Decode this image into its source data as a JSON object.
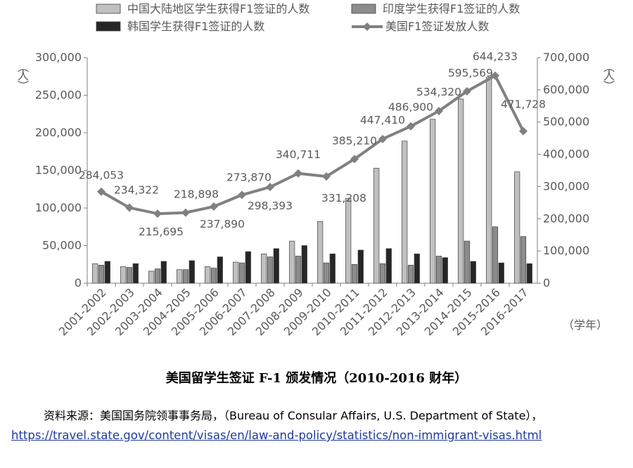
{
  "chart_data": {
    "type": "bar+line",
    "categories": [
      "2001-2002",
      "2002-2003",
      "2003-2004",
      "2004-2005",
      "2005-2006",
      "2006-2007",
      "2007-2008",
      "2008-2009",
      "2009-2010",
      "2010-2011",
      "2011-2012",
      "2012-2013",
      "2013-2014",
      "2014-2015",
      "2015-2016",
      "2016-2017"
    ],
    "series": [
      {
        "name": "中国大陆地区学生获得F1签证的人数",
        "kind": "bar",
        "axis": "left",
        "color": "#c0c0c0",
        "values": [
          26000,
          22000,
          16000,
          18000,
          22000,
          28000,
          39000,
          56000,
          82000,
          113000,
          153000,
          189000,
          218000,
          245000,
          274000,
          148000
        ]
      },
      {
        "name": "印度学生获得F1签证的人数",
        "kind": "bar",
        "axis": "left",
        "color": "#8c8c8c",
        "values": [
          24000,
          21000,
          19000,
          18000,
          20000,
          27000,
          35000,
          36000,
          27000,
          25000,
          26000,
          24000,
          36000,
          56000,
          75000,
          62000
        ]
      },
      {
        "name": "韩国学生获得F1签证的人数",
        "kind": "bar",
        "axis": "left",
        "color": "#262626",
        "values": [
          29000,
          26000,
          29000,
          30000,
          35000,
          42000,
          46000,
          50000,
          39000,
          44000,
          46000,
          39000,
          34000,
          29000,
          27000,
          26000
        ]
      },
      {
        "name": "美国F1签证发放人数",
        "kind": "line",
        "axis": "right",
        "color": "#808080",
        "values": [
          284053,
          234322,
          215695,
          218898,
          237890,
          273870,
          298393,
          340711,
          331208,
          385210,
          447410,
          486900,
          534320,
          595569,
          644233,
          471728
        ],
        "labels": [
          "284,053",
          "234,322",
          "215,695",
          "218,898",
          "237,890",
          "273,870",
          "298,393",
          "340,711",
          "331,208",
          "385,210",
          "447,410",
          "486,900",
          "534,320",
          "595,569",
          "644,233",
          "471,728"
        ]
      }
    ],
    "y_left": {
      "min": 0,
      "max": 300000,
      "ticks": [
        "0",
        "50,000",
        "100,000",
        "150,000",
        "200,000",
        "250,000",
        "300,000"
      ],
      "unit": "（人）"
    },
    "y_right": {
      "min": 0,
      "max": 700000,
      "ticks": [
        "0",
        "100,000",
        "200,000",
        "300,000",
        "400,000",
        "500,000",
        "600,000",
        "700,000"
      ],
      "unit": "（人）"
    },
    "x_unit": "（学年）",
    "legend_position": "top",
    "grid": false
  },
  "caption": "美国留学生签证 F-1 颁发情况（2010-2016 财年）",
  "source": {
    "text": "资料来源：美国国务院领事事务局，（Bureau of Consular Affairs, U.S. Department of State），",
    "url": "https://travel.state.gov/content/visas/en/law-and-policy/statistics/non-immigrant-visas.html"
  }
}
